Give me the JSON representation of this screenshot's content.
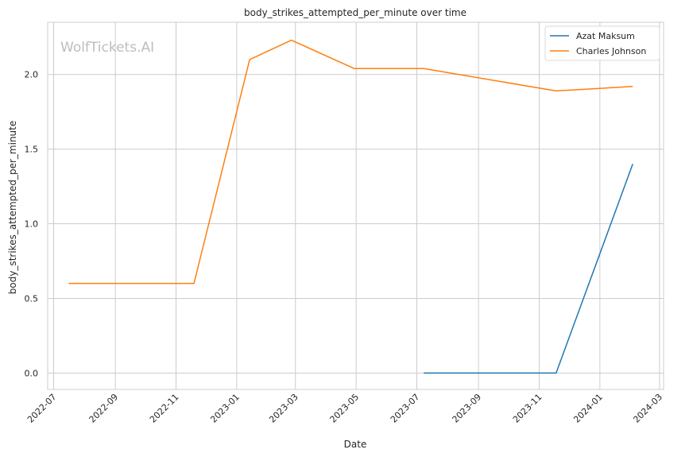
{
  "chart_data": {
    "type": "line",
    "title": "body_strikes_attempted_per_minute over time",
    "xlabel": "Date",
    "ylabel": "body_strikes_attempted_per_minute",
    "watermark": "WolfTickets.AI",
    "x_axis_type": "date",
    "xlim": [
      "2022-06-25",
      "2024-03-05"
    ],
    "ylim": [
      -0.11,
      2.35
    ],
    "x_ticks": [
      "2022-07",
      "2022-09",
      "2022-11",
      "2023-01",
      "2023-03",
      "2023-05",
      "2023-07",
      "2023-09",
      "2023-11",
      "2024-01",
      "2024-03"
    ],
    "y_ticks": [
      0.0,
      0.5,
      1.0,
      1.5,
      2.0
    ],
    "y_tick_labels": [
      "0.0",
      "0.5",
      "1.0",
      "1.5",
      "2.0"
    ],
    "grid": true,
    "legend_position": "top-right",
    "series": [
      {
        "name": "Azat Maksum",
        "color": "#1f77b4",
        "x": [
          "2023-07-08",
          "2023-11-18",
          "2024-02-03"
        ],
        "y": [
          0.0,
          0.0,
          1.4
        ]
      },
      {
        "name": "Charles Johnson",
        "color": "#ff7f0e",
        "x": [
          "2022-07-16",
          "2022-11-19",
          "2023-01-14",
          "2023-02-25",
          "2023-04-29",
          "2023-07-08",
          "2023-11-18",
          "2024-02-03"
        ],
        "y": [
          0.6,
          0.6,
          2.1,
          2.23,
          2.04,
          2.04,
          1.89,
          1.92
        ]
      }
    ]
  }
}
